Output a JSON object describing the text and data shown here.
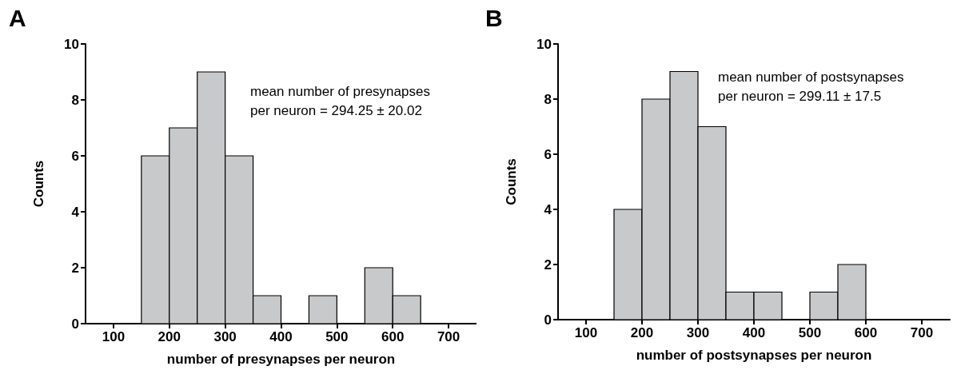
{
  "chart_data": [
    {
      "type": "histogram",
      "title": "A",
      "xlabel": "number of presynapses per neuron",
      "ylabel": "Counts",
      "bins": [
        150,
        200,
        250,
        300,
        350,
        400,
        450,
        500,
        550,
        600,
        650
      ],
      "values": [
        6,
        7,
        9,
        6,
        1,
        0,
        1,
        0,
        2,
        1
      ],
      "color": "#c8c9cb",
      "xlim": [
        50,
        750
      ],
      "xticks": [
        100,
        200,
        300,
        400,
        500,
        600,
        700
      ],
      "ylim": [
        0,
        10
      ],
      "yticks": [
        0,
        2,
        4,
        6,
        8,
        10
      ],
      "grid": false,
      "annotations": [
        "mean number of presynapses\nper neuron = 294.25 ± 20.02"
      ]
    },
    {
      "type": "histogram",
      "title": "B",
      "xlabel": "number of postsynapses per neuron",
      "ylabel": "Counts",
      "bins": [
        150,
        200,
        250,
        300,
        350,
        400,
        450,
        500,
        550,
        600
      ],
      "values": [
        4,
        8,
        9,
        7,
        1,
        1,
        0,
        1,
        2
      ],
      "color": "#c8c9cb",
      "xlim": [
        50,
        750
      ],
      "xticks": [
        100,
        200,
        300,
        400,
        500,
        600,
        700
      ],
      "ylim": [
        0,
        10
      ],
      "yticks": [
        0,
        2,
        4,
        6,
        8,
        10
      ],
      "grid": false,
      "annotations": [
        "mean number of postsynapses\nper neuron = 299.11 ± 17.5"
      ]
    }
  ]
}
